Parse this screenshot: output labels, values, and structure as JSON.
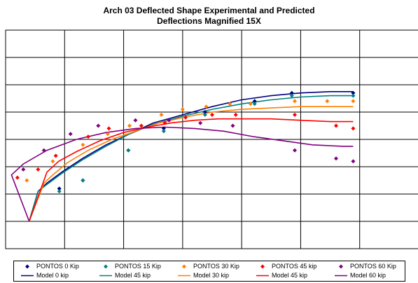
{
  "chart_data": {
    "type": "scatter",
    "title": [
      "Arch 03 Deflected Shape Experimental and Predicted",
      "Deflections Magnified 15X"
    ],
    "grid": true,
    "legend_position": "bottom",
    "series": [
      {
        "name": "PONTOS 0 Kip",
        "kind": "points",
        "marker": "diamond",
        "color": "#000080",
        "x": [
          0.91,
          1.31,
          2.08,
          2.68,
          3.38,
          4.22,
          4.85,
          5.89
        ],
        "y": [
          5.82,
          5.85,
          5.96,
          6.04,
          6.1,
          6.14,
          6.17,
          6.17
        ]
      },
      {
        "name": "PONTOS 15 Kip",
        "kind": "points",
        "marker": "diamond",
        "color": "#008080",
        "x": [
          0.91,
          1.31,
          2.08,
          2.68,
          3.38,
          4.22,
          4.85,
          5.89
        ],
        "y": [
          5.81,
          5.85,
          5.96,
          6.03,
          6.09,
          6.13,
          6.16,
          6.16
        ]
      },
      {
        "name": "PONTOS 30 Kip",
        "kind": "points",
        "marker": "diamond",
        "color": "#FF8000",
        "x": [
          0.36,
          0.8,
          1.31,
          1.73,
          2.1,
          2.64,
          3.0,
          3.4,
          3.8,
          4.15,
          4.9,
          5.45,
          5.89
        ],
        "y": [
          5.85,
          5.92,
          5.98,
          6.02,
          6.05,
          6.09,
          6.11,
          6.12,
          6.13,
          6.13,
          6.14,
          6.14,
          6.14
        ]
      },
      {
        "name": "PONTOS 45 kip",
        "kind": "points",
        "marker": "diamond",
        "color": "#FF0000",
        "x": [
          0.2,
          0.55,
          0.85,
          1.4,
          1.75,
          2.3,
          2.7,
          3.05,
          3.5,
          3.9,
          4.9,
          5.6,
          5.89
        ],
        "y": [
          5.86,
          5.89,
          5.94,
          6.01,
          6.04,
          6.05,
          6.06,
          6.08,
          6.09,
          6.09,
          6.09,
          6.05,
          6.04
        ]
      },
      {
        "name": "PONTOS 60 Kip",
        "kind": "points",
        "marker": "diamond",
        "color": "#800080",
        "x": [
          0.3,
          0.65,
          1.1,
          1.57,
          2.2,
          2.77,
          3.3,
          3.85,
          4.9,
          5.6,
          5.89
        ],
        "y": [
          5.89,
          5.96,
          6.02,
          6.05,
          6.07,
          6.07,
          6.06,
          6.05,
          5.96,
          5.93,
          5.92
        ]
      },
      {
        "name": "Model 0 kip",
        "kind": "line",
        "color": "#000080",
        "x": [
          0.4,
          0.55,
          0.7,
          0.95,
          1.3,
          1.7,
          2.1,
          2.5,
          3.0,
          3.5,
          4.0,
          4.5,
          5.0,
          5.5,
          5.89
        ],
        "y": [
          5.7,
          5.81,
          5.84,
          5.88,
          5.93,
          5.98,
          6.02,
          6.06,
          6.09,
          6.12,
          6.145,
          6.16,
          6.17,
          6.175,
          6.175
        ]
      },
      {
        "name": "Model 45 kip",
        "kind": "line",
        "color": "#008080",
        "x": [
          0.4,
          0.55,
          0.7,
          0.95,
          1.3,
          1.7,
          2.1,
          2.5,
          3.0,
          3.5,
          4.0,
          4.5,
          5.0,
          5.5,
          5.89
        ],
        "y": [
          5.7,
          5.81,
          5.835,
          5.875,
          5.925,
          5.975,
          6.02,
          6.055,
          6.085,
          6.11,
          6.13,
          6.145,
          6.155,
          6.16,
          6.16
        ]
      },
      {
        "name": "Model 30 kip",
        "kind": "line",
        "color": "#FF8000",
        "x": [
          0.4,
          0.65,
          0.8,
          1.05,
          1.4,
          1.8,
          2.2,
          2.6,
          3.0,
          3.5,
          4.0,
          4.5,
          5.0,
          5.5,
          5.89
        ],
        "y": [
          5.7,
          5.84,
          5.87,
          5.915,
          5.96,
          6.0,
          6.03,
          6.06,
          6.08,
          6.1,
          6.11,
          6.115,
          6.12,
          6.12,
          6.12
        ]
      },
      {
        "name": "Model 45 kip",
        "kind": "line",
        "color": "#FF0000",
        "x": [
          0.4,
          0.7,
          0.9,
          1.2,
          1.6,
          2.0,
          2.4,
          2.8,
          3.2,
          3.6,
          4.0,
          4.5,
          5.0,
          5.5,
          5.89
        ],
        "y": [
          5.7,
          5.88,
          5.92,
          5.955,
          5.995,
          6.025,
          6.045,
          6.06,
          6.07,
          6.075,
          6.075,
          6.075,
          6.07,
          6.065,
          6.065
        ]
      },
      {
        "name": "Model 60 kip",
        "kind": "line",
        "color": "#800080",
        "x": [
          0.4,
          0.1,
          0.3,
          0.7,
          1.2,
          1.7,
          2.2,
          2.7,
          3.2,
          3.7,
          4.2,
          4.7,
          5.2,
          5.7,
          5.89
        ],
        "y": [
          5.7,
          5.87,
          5.91,
          5.96,
          6.0,
          6.025,
          6.04,
          6.045,
          6.04,
          6.03,
          6.01,
          5.995,
          5.98,
          5.975,
          5.975
        ]
      }
    ],
    "xlim": [
      0,
      7
    ],
    "ylim": [
      5.6,
      6.4
    ],
    "x_gridlines": [
      1,
      2,
      3,
      4,
      5,
      6
    ],
    "y_gridlines": [
      5.7,
      5.8,
      5.9,
      6.0,
      6.1,
      6.2,
      6.3
    ]
  }
}
